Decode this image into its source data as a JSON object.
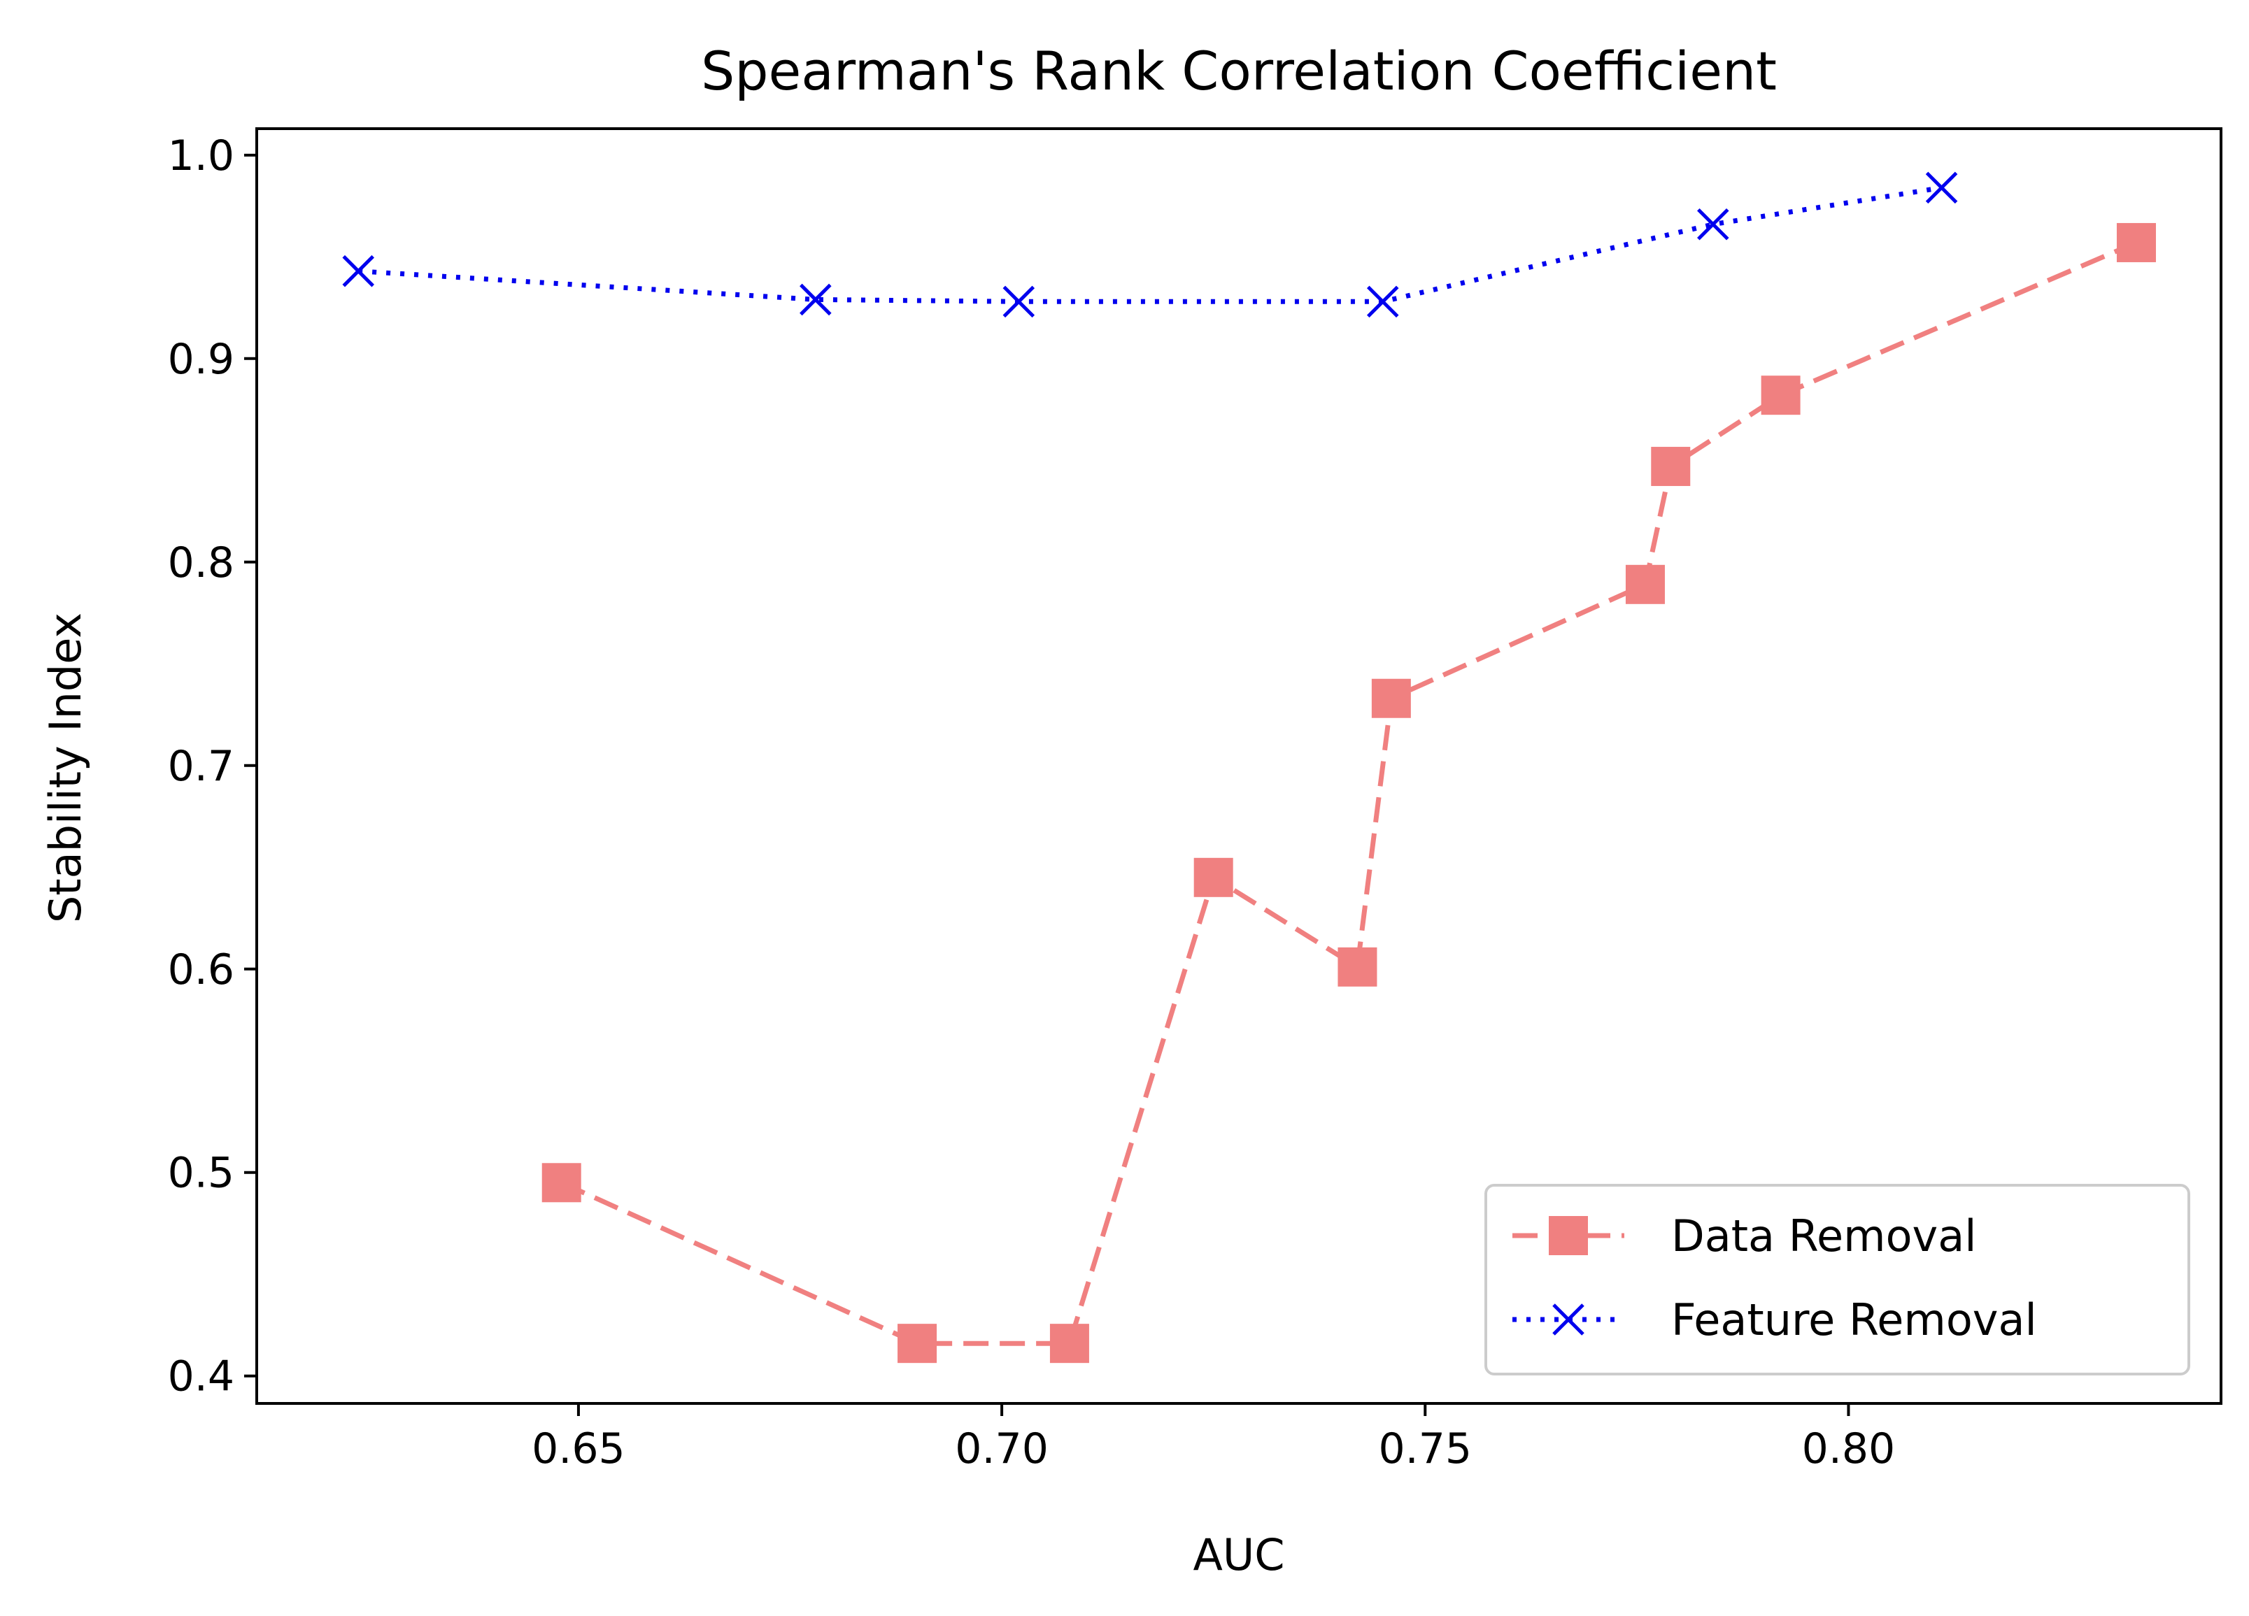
{
  "chart_data": {
    "type": "line",
    "title": "Spearman's Rank Correlation Coefficient",
    "xlabel": "AUC",
    "ylabel": "Stability Index",
    "xlim": [
      0.612,
      0.844
    ],
    "ylim": [
      0.3865,
      1.013
    ],
    "xticks": [
      {
        "value": 0.65,
        "label": "0.65"
      },
      {
        "value": 0.7,
        "label": "0.70"
      },
      {
        "value": 0.75,
        "label": "0.75"
      },
      {
        "value": 0.8,
        "label": "0.80"
      }
    ],
    "yticks": [
      {
        "value": 0.4,
        "label": "0.4"
      },
      {
        "value": 0.5,
        "label": "0.5"
      },
      {
        "value": 0.6,
        "label": "0.6"
      },
      {
        "value": 0.7,
        "label": "0.7"
      },
      {
        "value": 0.8,
        "label": "0.8"
      },
      {
        "value": 0.9,
        "label": "0.9"
      },
      {
        "value": 1.0,
        "label": "1.0"
      }
    ],
    "grid": false,
    "legend_position": "lower-right",
    "series": [
      {
        "name": "Data Removal",
        "color": "#f08080",
        "linestyle": "dashed",
        "marker": "square",
        "points": [
          {
            "x": 0.648,
            "y": 0.495
          },
          {
            "x": 0.69,
            "y": 0.416
          },
          {
            "x": 0.708,
            "y": 0.416
          },
          {
            "x": 0.725,
            "y": 0.645
          },
          {
            "x": 0.742,
            "y": 0.601
          },
          {
            "x": 0.746,
            "y": 0.733
          },
          {
            "x": 0.776,
            "y": 0.789
          },
          {
            "x": 0.779,
            "y": 0.847
          },
          {
            "x": 0.792,
            "y": 0.882
          },
          {
            "x": 0.834,
            "y": 0.957
          }
        ]
      },
      {
        "name": "Feature Removal",
        "color": "#0000ee",
        "linestyle": "dotted",
        "marker": "x",
        "points": [
          {
            "x": 0.624,
            "y": 0.943
          },
          {
            "x": 0.678,
            "y": 0.929
          },
          {
            "x": 0.702,
            "y": 0.928
          },
          {
            "x": 0.745,
            "y": 0.928
          },
          {
            "x": 0.784,
            "y": 0.966
          },
          {
            "x": 0.811,
            "y": 0.984
          }
        ]
      }
    ]
  }
}
